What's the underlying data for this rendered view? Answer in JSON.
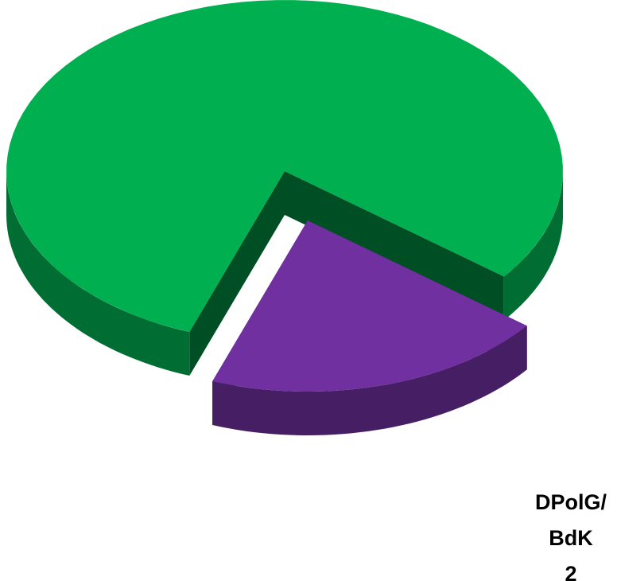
{
  "chart_data": {
    "type": "pie",
    "categories": [
      null,
      "DPolG/BdK"
    ],
    "values": [
      8,
      2
    ],
    "colors": [
      "#00b050",
      "#7030a0"
    ]
  }
}
